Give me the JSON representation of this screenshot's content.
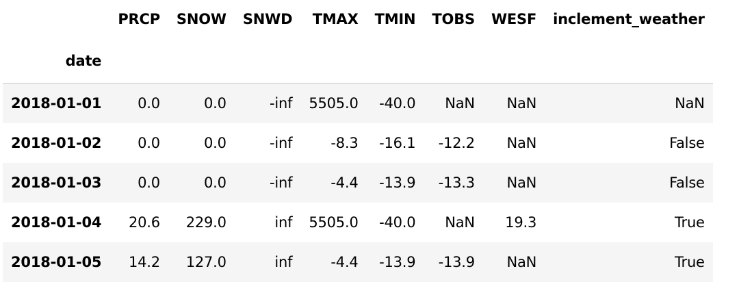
{
  "table": {
    "index_name": "date",
    "columns": [
      "PRCP",
      "SNOW",
      "SNWD",
      "TMAX",
      "TMIN",
      "TOBS",
      "WESF",
      "inclement_weather"
    ],
    "rows": [
      {
        "index": "2018-01-01",
        "cells": [
          "0.0",
          "0.0",
          "-inf",
          "5505.0",
          "-40.0",
          "NaN",
          "NaN",
          "NaN"
        ]
      },
      {
        "index": "2018-01-02",
        "cells": [
          "0.0",
          "0.0",
          "-inf",
          "-8.3",
          "-16.1",
          "-12.2",
          "NaN",
          "False"
        ]
      },
      {
        "index": "2018-01-03",
        "cells": [
          "0.0",
          "0.0",
          "-inf",
          "-4.4",
          "-13.9",
          "-13.3",
          "NaN",
          "False"
        ]
      },
      {
        "index": "2018-01-04",
        "cells": [
          "20.6",
          "229.0",
          "inf",
          "5505.0",
          "-40.0",
          "NaN",
          "19.3",
          "True"
        ]
      },
      {
        "index": "2018-01-05",
        "cells": [
          "14.2",
          "127.0",
          "inf",
          "-4.4",
          "-13.9",
          "-13.9",
          "NaN",
          "True"
        ]
      }
    ]
  }
}
